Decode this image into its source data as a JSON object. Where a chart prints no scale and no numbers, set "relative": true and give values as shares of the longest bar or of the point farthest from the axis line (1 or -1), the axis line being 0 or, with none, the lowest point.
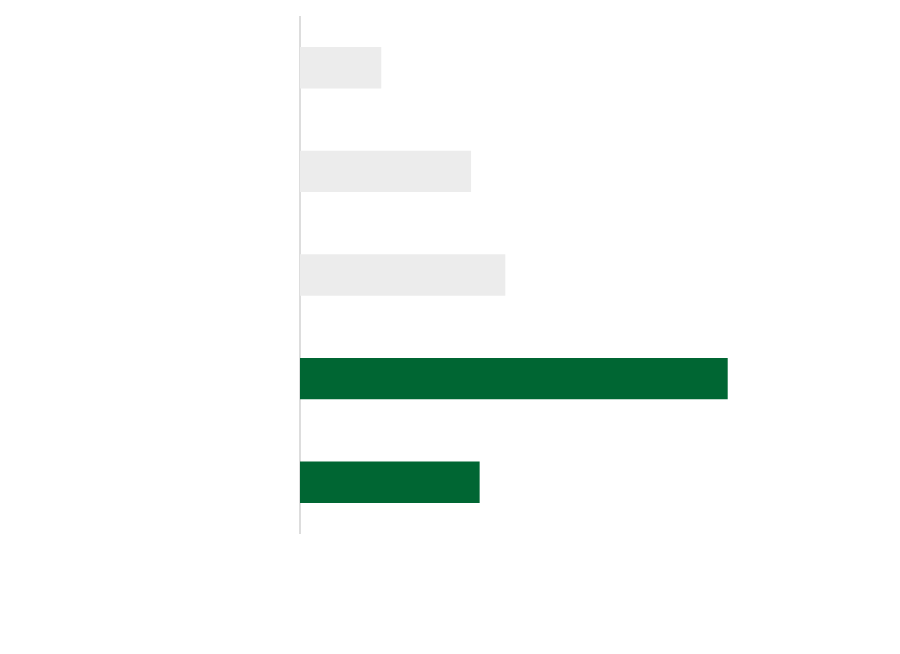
{
  "chart_data": {
    "type": "bar",
    "orientation": "horizontal",
    "relative": true,
    "categories": [
      null,
      null,
      null,
      null,
      null
    ],
    "values": [
      0.19,
      0.4,
      0.48,
      1,
      0.42
    ],
    "colors": [
      "#ececec",
      "#ececec",
      "#ececec",
      "#006633",
      "#006633"
    ]
  }
}
